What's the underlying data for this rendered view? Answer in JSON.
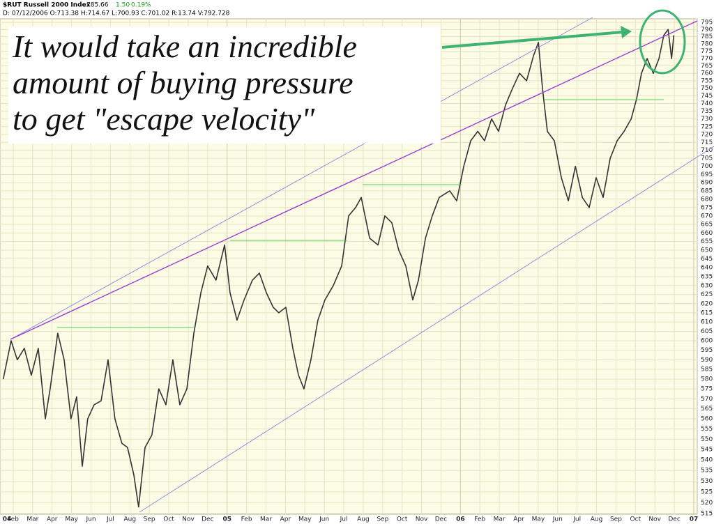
{
  "chart_data": {
    "type": "line",
    "title": "$RUT Russell 2000 Index",
    "last": "785.66",
    "change": "1.50",
    "change_pct": "0.19%",
    "info": "D: 07/12/2006 O:713.38 H:714.67 L:700.93 C:701.02 R:13.74 V:792.728",
    "annotation": [
      "It would take an incredible",
      "amount of buying pressure",
      "to get \"escape velocity\""
    ],
    "color": "#333333",
    "log": true,
    "grid": true,
    "xlim": [
      0.32,
      36.18
    ],
    "ylim": [
      514.7,
      797.5
    ],
    "xticks": [
      {
        "value": 0,
        "label": "04"
      },
      {
        "value": 1,
        "label": "Feb"
      },
      {
        "value": 2,
        "label": "Mar"
      },
      {
        "value": 3,
        "label": "Apr"
      },
      {
        "value": 4,
        "label": "May"
      },
      {
        "value": 5,
        "label": "Jun"
      },
      {
        "value": 6,
        "label": "Jul"
      },
      {
        "value": 7,
        "label": "Aug"
      },
      {
        "value": 8,
        "label": "Sep"
      },
      {
        "value": 9,
        "label": "Oct"
      },
      {
        "value": 10,
        "label": "Nov"
      },
      {
        "value": 11,
        "label": "Dec"
      },
      {
        "value": 12,
        "label": "05"
      },
      {
        "value": 13,
        "label": "Feb"
      },
      {
        "value": 14,
        "label": "Mar"
      },
      {
        "value": 15,
        "label": "Apr"
      },
      {
        "value": 16,
        "label": "May"
      },
      {
        "value": 17,
        "label": "Jun"
      },
      {
        "value": 18,
        "label": "Jul"
      },
      {
        "value": 19,
        "label": "Aug"
      },
      {
        "value": 20,
        "label": "Sep"
      },
      {
        "value": 21,
        "label": "Oct"
      },
      {
        "value": 22,
        "label": "Nov"
      },
      {
        "value": 23,
        "label": "Dec"
      },
      {
        "value": 24,
        "label": "06"
      },
      {
        "value": 25,
        "label": "Feb"
      },
      {
        "value": 26,
        "label": "Mar"
      },
      {
        "value": 27,
        "label": "Apr"
      },
      {
        "value": 28,
        "label": "May"
      },
      {
        "value": 29,
        "label": "Jun"
      },
      {
        "value": 30,
        "label": "Jul"
      },
      {
        "value": 31,
        "label": "Aug"
      },
      {
        "value": 32,
        "label": "Sep"
      },
      {
        "value": 33,
        "label": "Oct"
      },
      {
        "value": 34,
        "label": "Nov"
      },
      {
        "value": 35,
        "label": "Dec"
      },
      {
        "value": 36,
        "label": "07"
      }
    ],
    "yticks": [
      515,
      520,
      525,
      530,
      535,
      540,
      545,
      550,
      555,
      560,
      565,
      570,
      575,
      580,
      585,
      590,
      595,
      600,
      605,
      610,
      615,
      620,
      625,
      630,
      635,
      640,
      645,
      650,
      655,
      660,
      665,
      670,
      675,
      680,
      685,
      690,
      695,
      700,
      705,
      710,
      715,
      720,
      725,
      730,
      735,
      740,
      745,
      750,
      755,
      760,
      765,
      770,
      775,
      780,
      785,
      790,
      795
    ],
    "x": [
      0.49,
      0.89,
      1.21,
      1.57,
      1.93,
      2.29,
      2.65,
      2.9,
      3.29,
      3.62,
      3.97,
      4.26,
      4.55,
      4.83,
      5.16,
      5.52,
      5.88,
      6.23,
      6.59,
      6.88,
      7.2,
      7.45,
      7.78,
      8.13,
      8.49,
      8.85,
      9.21,
      9.57,
      9.93,
      10.29,
      10.65,
      11.0,
      11.43,
      11.87,
      12.15,
      12.51,
      12.87,
      13.3,
      13.66,
      14.02,
      14.37,
      14.66,
      15.02,
      15.38,
      15.67,
      15.95,
      16.31,
      16.67,
      17.03,
      17.46,
      17.89,
      18.25,
      18.61,
      18.9,
      19.33,
      19.76,
      20.11,
      20.47,
      20.83,
      21.19,
      21.55,
      21.84,
      22.2,
      22.55,
      22.91,
      23.45,
      23.81,
      24.17,
      24.53,
      24.89,
      25.24,
      25.6,
      25.96,
      26.32,
      26.68,
      27.04,
      27.4,
      27.76,
      28.01,
      28.22,
      28.47,
      28.83,
      29.19,
      29.55,
      29.91,
      30.27,
      30.62,
      30.98,
      31.34,
      31.7,
      32.06,
      32.42,
      32.78,
      33.06,
      33.31,
      33.6,
      33.92,
      34.21,
      34.46,
      34.68,
      34.86,
      34.97
    ],
    "values": [
      580,
      600,
      590,
      596,
      582,
      596,
      560,
      575,
      604,
      590,
      560,
      571,
      537,
      560,
      567,
      569,
      590,
      560,
      548,
      546,
      533,
      518,
      546,
      552,
      575,
      567,
      590,
      567,
      575,
      604,
      626,
      641,
      633,
      653,
      626,
      611,
      622,
      633,
      637,
      626,
      618,
      615,
      618,
      596,
      582,
      575,
      590,
      611,
      622,
      630,
      641,
      670,
      675,
      681,
      657,
      653,
      670,
      666,
      650,
      641,
      622,
      633,
      657,
      670,
      681,
      685,
      679,
      700,
      716,
      722,
      716,
      730,
      722,
      739,
      750,
      760,
      755,
      772,
      781,
      750,
      722,
      716,
      693,
      679,
      700,
      681,
      675,
      693,
      681,
      705,
      716,
      722,
      730,
      743,
      760,
      770,
      760,
      770,
      786,
      790,
      770,
      786
    ]
  }
}
